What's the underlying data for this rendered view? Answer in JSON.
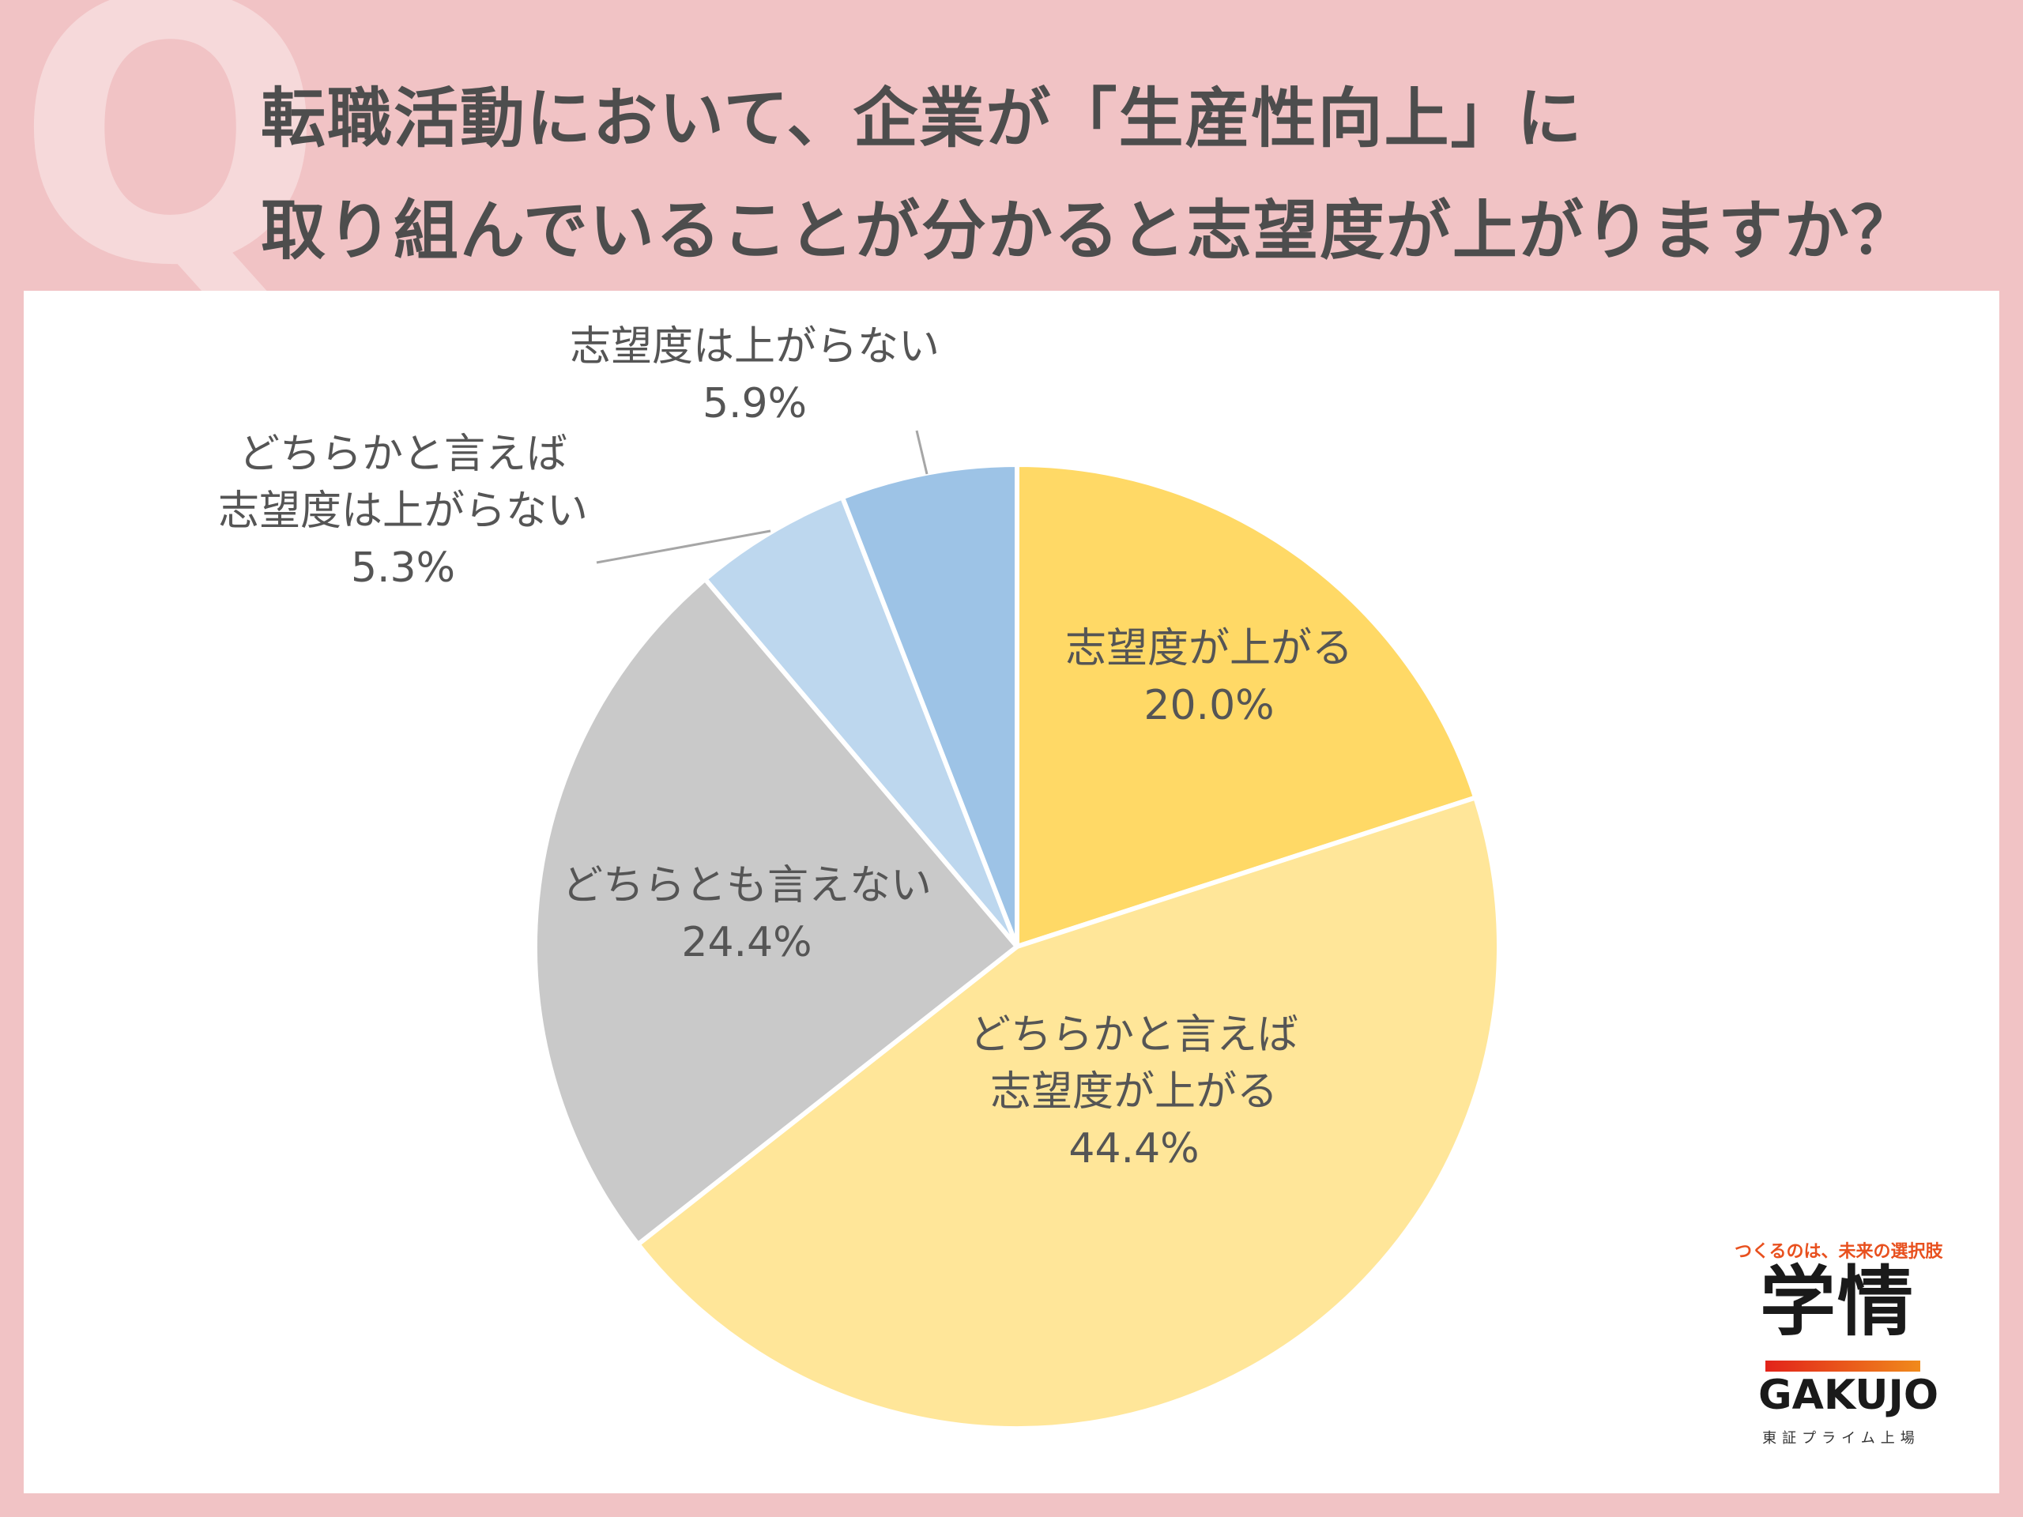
{
  "header": {
    "q_mark": "Q",
    "title_line1": "転職活動において、企業が「生産性向上」に",
    "title_line2": "取り組んでいることが分かると志望度が上がりますか？"
  },
  "chart_data": {
    "type": "pie",
    "title": "",
    "slices": [
      {
        "label_lines": [
          "志望度が上がる"
        ],
        "value": 20.0,
        "value_label": "20.0%",
        "color": "#ffd966"
      },
      {
        "label_lines": [
          "どちらかと言えば",
          "志望度が上がる"
        ],
        "value": 44.4,
        "value_label": "44.4%",
        "color": "#ffe699"
      },
      {
        "label_lines": [
          "どちらとも言えない"
        ],
        "value": 24.4,
        "value_label": "24.4%",
        "color": "#c9c9c9"
      },
      {
        "label_lines": [
          "どちらかと言えば",
          "志望度は上がらない"
        ],
        "value": 5.3,
        "value_label": "5.3%",
        "color": "#bdd7ee"
      },
      {
        "label_lines": [
          "志望度は上がらない"
        ],
        "value": 5.9,
        "value_label": "5.9%",
        "color": "#9dc3e6"
      }
    ],
    "start_angle": "12 o'clock",
    "direction": "clockwise",
    "legend": "none"
  },
  "logo": {
    "tagline": "つくるのは、未来の選択肢",
    "name_kanji": "学情",
    "name_en": "GAKUJO",
    "sub": "東証プライム上場"
  }
}
